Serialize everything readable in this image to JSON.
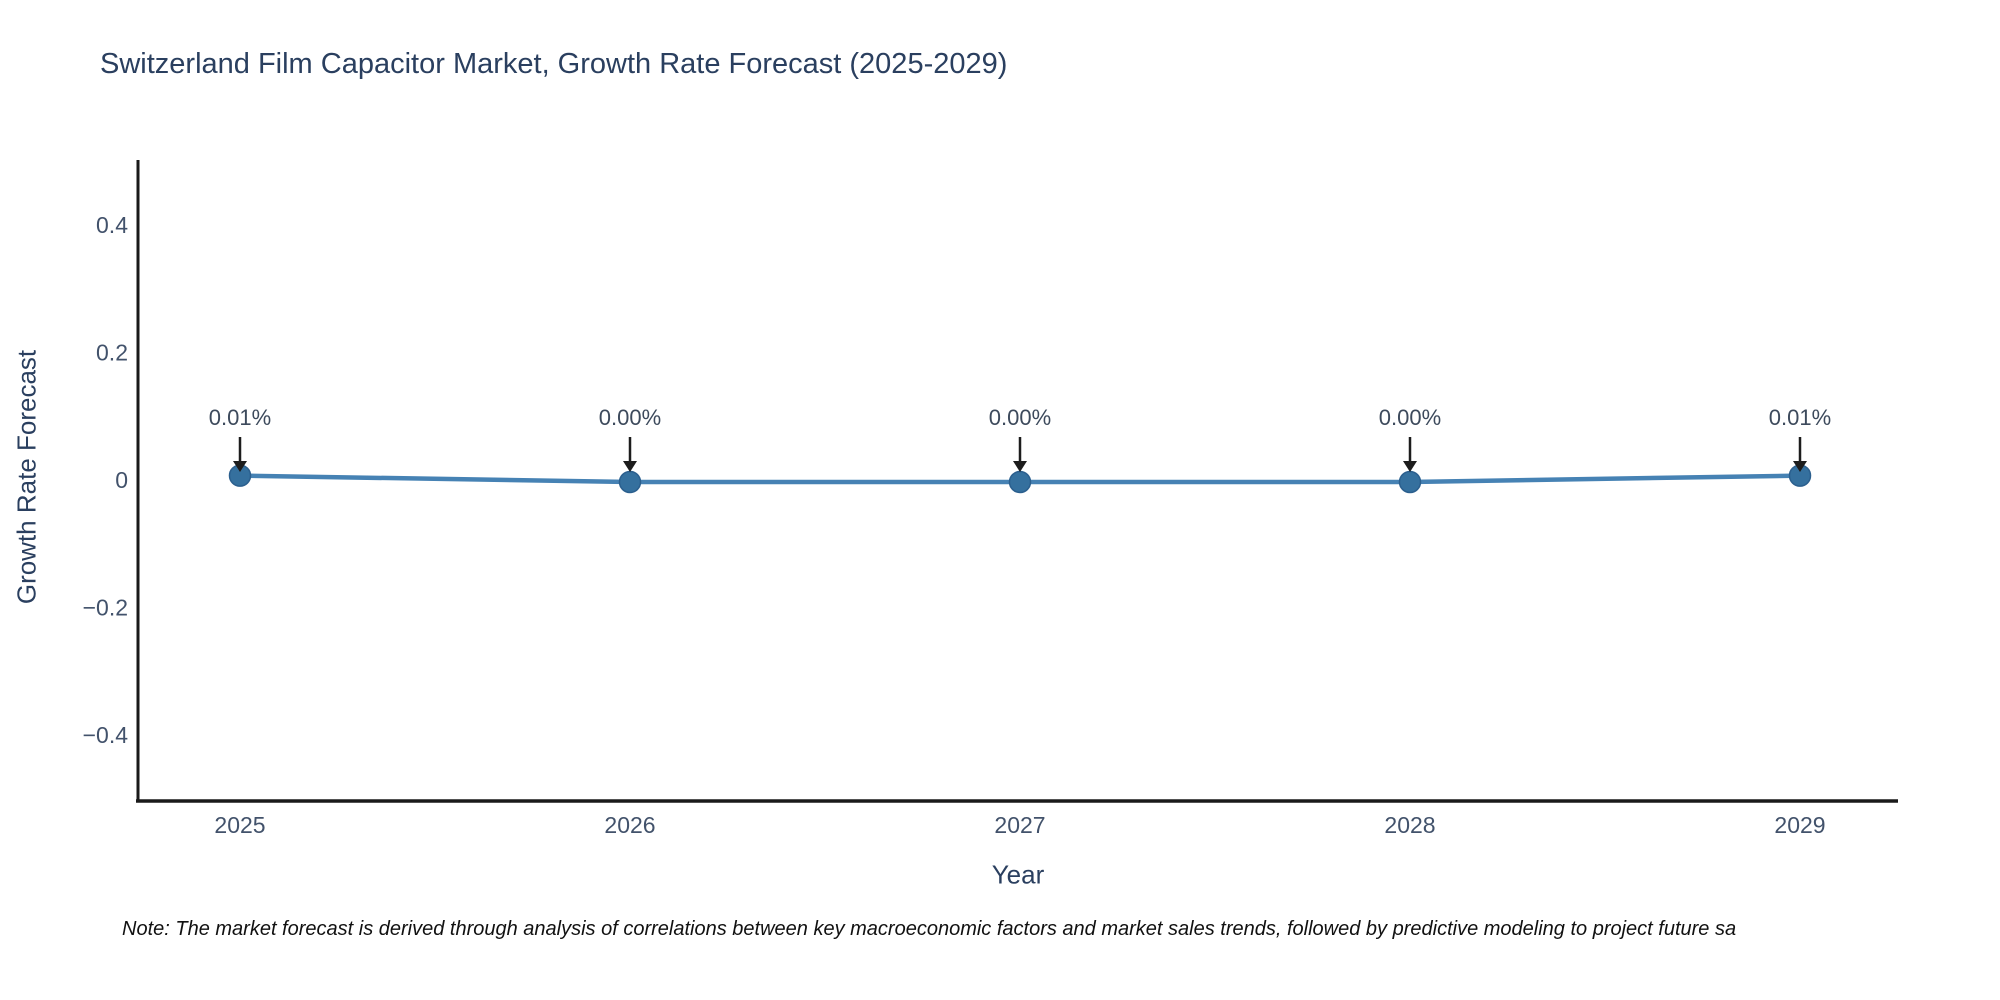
{
  "chart_data": {
    "type": "line",
    "title": "Switzerland Film Capacitor Market, Growth Rate Forecast (2025-2029)",
    "xlabel": "Year",
    "ylabel": "Growth Rate Forecast",
    "categories": [
      "2025",
      "2026",
      "2027",
      "2028",
      "2029"
    ],
    "series": [
      {
        "name": "Growth Rate Forecast",
        "values": [
          0.01,
          0.0,
          0.0,
          0.0,
          0.01
        ],
        "annotations": [
          "0.01%",
          "0.00%",
          "0.00%",
          "0.00%",
          "0.01%"
        ]
      }
    ],
    "y_ticks": [
      {
        "value": 0.4,
        "label": "0.4"
      },
      {
        "value": 0.2,
        "label": "0.2"
      },
      {
        "value": 0,
        "label": "0"
      },
      {
        "value": -0.2,
        "label": "−0.2"
      },
      {
        "value": -0.4,
        "label": "−0.4"
      }
    ],
    "ylim": [
      -0.5,
      0.5
    ],
    "grid": false,
    "legend_position": "none",
    "colors": {
      "line": "#4682b4",
      "marker_fill": "#35709e",
      "marker_stroke": "#2b5f8e",
      "axis_line": "#1a1a1a",
      "tick_text": "#42526b",
      "annotation_text": "#3d4a5c",
      "annotation_arrow": "#1c1c1c",
      "title_text": "#2a3f5f"
    }
  },
  "note": {
    "text": "Note: The market forecast is derived through analysis of correlations between key macroeconomic factors and market sales trends, followed by predictive modeling to project future sa"
  }
}
